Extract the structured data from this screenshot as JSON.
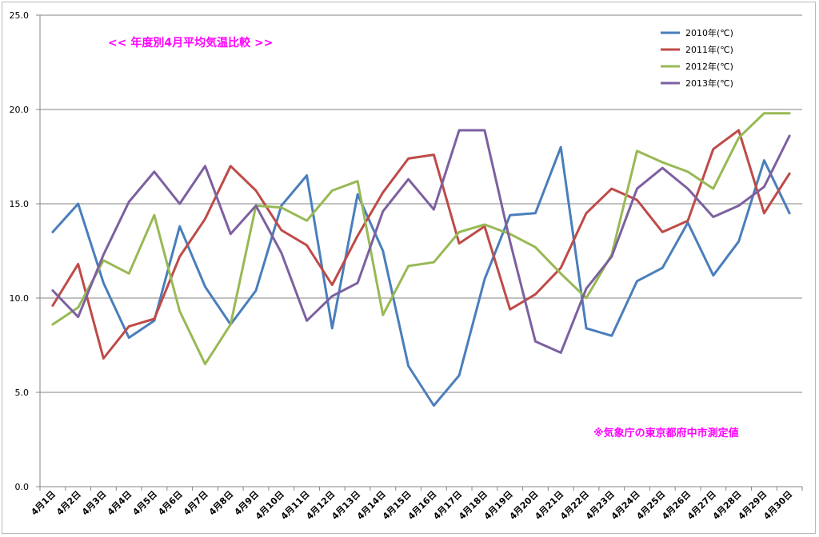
{
  "chart_data": {
    "type": "line",
    "title": "<<  年度別4月平均気温比較  >>",
    "annotation": "※気象庁の東京都府中市測定値",
    "xlabel": "",
    "ylabel": "",
    "ylim": [
      0,
      25
    ],
    "yticks": [
      "0.0",
      "5.0",
      "10.0",
      "15.0",
      "20.0",
      "25.0"
    ],
    "grid": true,
    "legend_position": "top-right",
    "categories": [
      "4月1日",
      "4月2日",
      "4月3日",
      "4月4日",
      "4月5日",
      "4月6日",
      "4月7日",
      "4月8日",
      "4月9日",
      "4月10日",
      "4月11日",
      "4月12日",
      "4月13日",
      "4月14日",
      "4月15日",
      "4月16日",
      "4月17日",
      "4月18日",
      "4月19日",
      "4月20日",
      "4月21日",
      "4月22日",
      "4月23日",
      "4月24日",
      "4月25日",
      "4月26日",
      "4月27日",
      "4月28日",
      "4月29日",
      "4月30日"
    ],
    "series": [
      {
        "name": "2010年(℃)",
        "color": "#4a7ebb",
        "values": [
          13.5,
          15.0,
          10.8,
          7.9,
          8.8,
          13.8,
          10.6,
          8.6,
          10.4,
          14.9,
          16.5,
          8.4,
          15.5,
          12.5,
          6.4,
          4.3,
          5.9,
          11.0,
          14.4,
          14.5,
          18.0,
          8.4,
          8.0,
          10.9,
          11.6,
          14.0,
          11.2,
          13.0,
          17.3,
          14.5
        ]
      },
      {
        "name": "2011年(℃)",
        "color": "#be4b48",
        "values": [
          9.6,
          11.8,
          6.8,
          8.5,
          8.9,
          12.2,
          14.2,
          17.0,
          15.7,
          13.6,
          12.8,
          10.7,
          13.3,
          15.6,
          17.4,
          17.6,
          12.9,
          13.8,
          9.4,
          10.2,
          11.6,
          14.5,
          15.8,
          15.2,
          13.5,
          14.1,
          17.9,
          18.9,
          14.5,
          16.6
        ]
      },
      {
        "name": "2012年(℃)",
        "color": "#98b954",
        "values": [
          8.6,
          9.5,
          12.0,
          11.3,
          14.4,
          9.3,
          6.5,
          8.6,
          14.9,
          14.8,
          14.1,
          15.7,
          16.2,
          9.1,
          11.7,
          11.9,
          13.5,
          13.9,
          13.4,
          12.7,
          11.3,
          10.0,
          12.3,
          17.8,
          17.2,
          16.7,
          15.8,
          18.5,
          19.8,
          19.8
        ]
      },
      {
        "name": "2013年(℃)",
        "color": "#7d60a0",
        "values": [
          10.4,
          9.0,
          12.3,
          15.1,
          16.7,
          15.0,
          17.0,
          13.4,
          14.9,
          12.4,
          8.8,
          10.1,
          10.8,
          14.6,
          16.3,
          14.7,
          18.9,
          18.9,
          13.0,
          7.7,
          7.1,
          10.5,
          12.2,
          15.8,
          16.9,
          15.8,
          14.3,
          14.9,
          15.9,
          18.6
        ]
      }
    ]
  }
}
